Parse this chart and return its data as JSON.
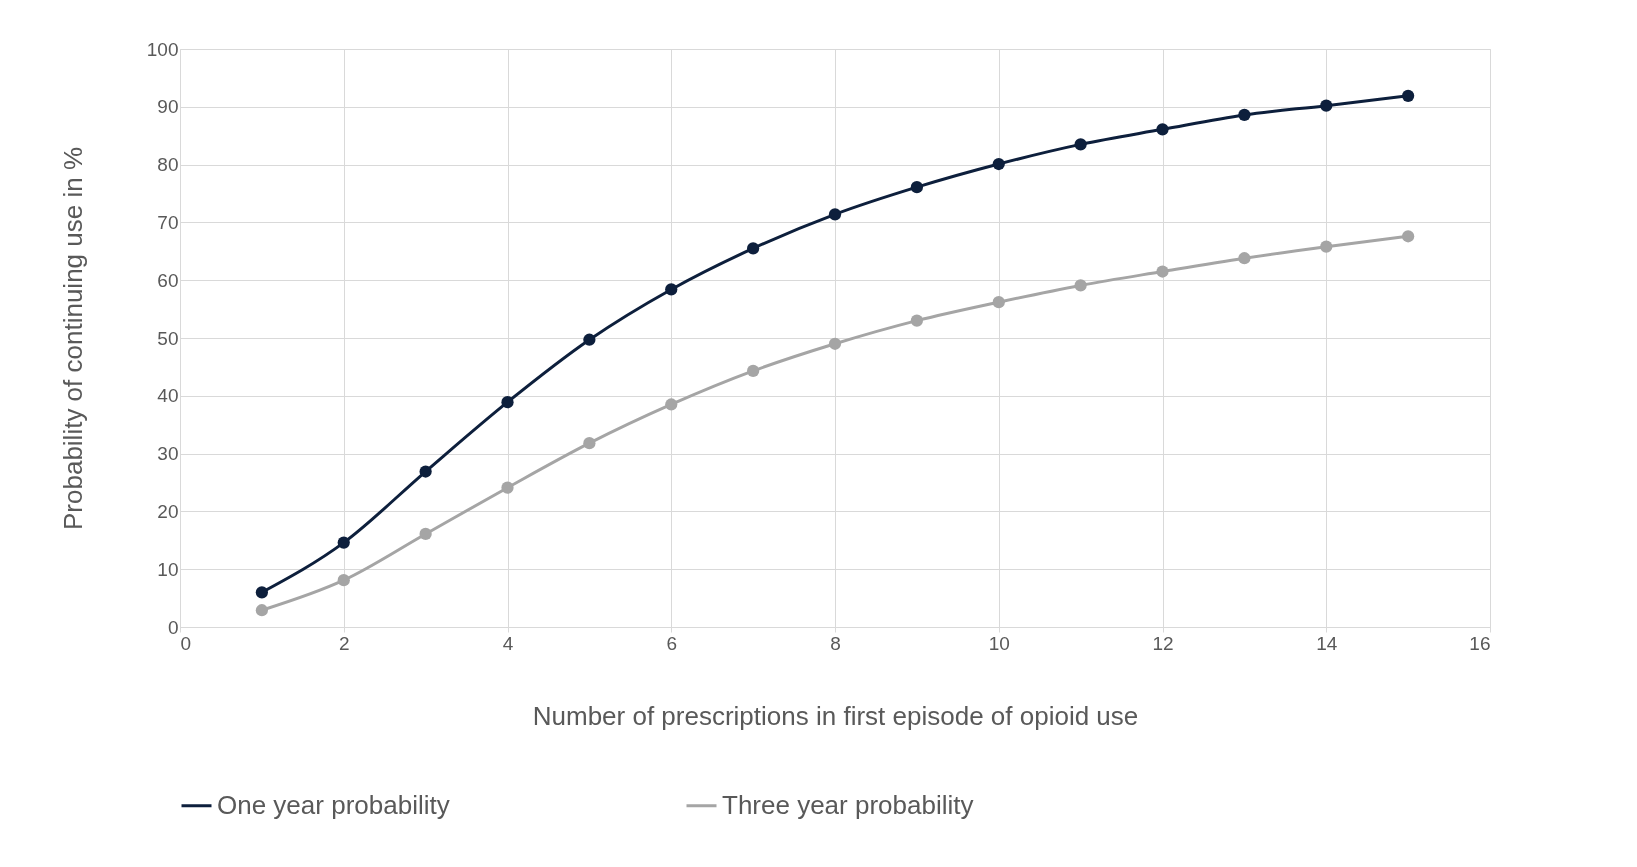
{
  "chart_data": {
    "type": "line",
    "xlabel": "Number of prescriptions in first episode of opioid use",
    "ylabel": "Probability of continuing use in %",
    "x": [
      1,
      2,
      3,
      4,
      5,
      6,
      7,
      8,
      9,
      10,
      11,
      12,
      13,
      14,
      15
    ],
    "series": [
      {
        "name": "One year probability",
        "color": "#0d1f3c",
        "values": [
          6.0,
          14.6,
          26.9,
          38.9,
          49.7,
          58.4,
          65.5,
          71.4,
          76.1,
          80.1,
          83.5,
          86.1,
          88.6,
          90.2,
          91.9
        ]
      },
      {
        "name": "Three year probability",
        "color": "#a5a5a5",
        "values": [
          2.9,
          8.1,
          16.1,
          24.1,
          31.8,
          38.5,
          44.3,
          49.0,
          53.0,
          56.2,
          59.1,
          61.5,
          63.8,
          65.8,
          67.6
        ]
      }
    ],
    "xlim": [
      0,
      16
    ],
    "xticks": [
      0,
      2,
      4,
      6,
      8,
      10,
      12,
      14,
      16
    ],
    "ylim": [
      0,
      100
    ],
    "yticks": [
      0,
      10,
      20,
      30,
      40,
      50,
      60,
      70,
      80,
      90,
      100
    ],
    "grid": true,
    "legend": "bottom",
    "marker": "circle",
    "line_style": "solid"
  }
}
